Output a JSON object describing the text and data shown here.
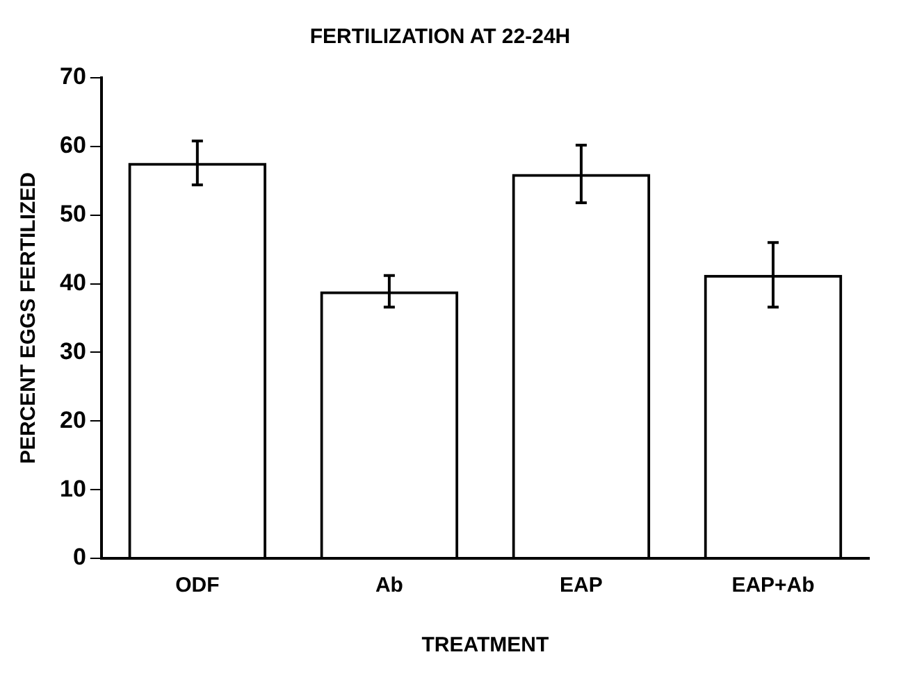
{
  "chart_data": {
    "type": "bar",
    "title": "FERTILIZATION AT 22-24H",
    "xlabel": "TREATMENT",
    "ylabel": "PERCENT EGGS FERTILIZED",
    "categories": [
      "ODF",
      "Ab",
      "EAP",
      "EAP+Ab"
    ],
    "values": [
      57.6,
      38.9,
      56.0,
      41.3
    ],
    "errors": [
      3.2,
      2.3,
      4.2,
      4.7
    ],
    "color": "#000000",
    "ylim": [
      0,
      70
    ],
    "yticks": [
      0,
      10,
      20,
      30,
      40,
      50,
      60,
      70
    ],
    "grid": false,
    "legend": false
  }
}
